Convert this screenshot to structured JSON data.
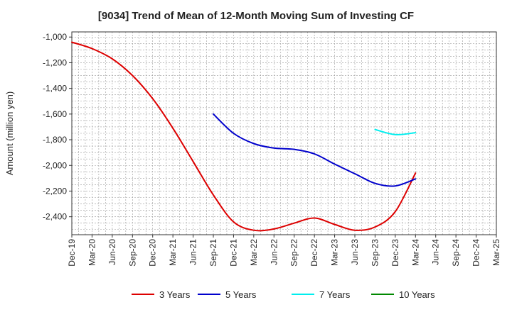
{
  "chart_data": {
    "type": "line",
    "title": "[9034]  Trend of Mean of 12-Month Moving Sum of Investing CF",
    "xlabel": "",
    "ylabel": "Amount (million yen)",
    "ylim": [
      -2540,
      -960
    ],
    "yticks": [
      -1000,
      -1200,
      -1400,
      -1600,
      -1800,
      -2000,
      -2200,
      -2400
    ],
    "ytick_labels": [
      "-1,000",
      "-1,200",
      "-1,400",
      "-1,600",
      "-1,800",
      "-2,000",
      "-2,200",
      "-2,400"
    ],
    "x_start": "Dec-19",
    "x_categories": [
      "Dec-19",
      "Mar-20",
      "Jun-20",
      "Sep-20",
      "Dec-20",
      "Mar-21",
      "Jun-21",
      "Sep-21",
      "Dec-21",
      "Mar-22",
      "Jun-22",
      "Sep-22",
      "Dec-22",
      "Mar-23",
      "Jun-23",
      "Sep-23",
      "Dec-23",
      "Mar-24",
      "Jun-24",
      "Sep-24",
      "Dec-24",
      "Mar-25"
    ],
    "grid": true,
    "legend_position": "bottom",
    "series": [
      {
        "name": "3 Years",
        "color": "#dd0000",
        "points": [
          [
            "Dec-19",
            -1040
          ],
          [
            "Mar-20",
            -1090
          ],
          [
            "Jun-20",
            -1170
          ],
          [
            "Sep-20",
            -1300
          ],
          [
            "Dec-20",
            -1480
          ],
          [
            "Mar-21",
            -1710
          ],
          [
            "Jun-21",
            -1970
          ],
          [
            "Sep-21",
            -2230
          ],
          [
            "Dec-21",
            -2440
          ],
          [
            "Mar-22",
            -2505
          ],
          [
            "Jun-22",
            -2495
          ],
          [
            "Sep-22",
            -2450
          ],
          [
            "Dec-22",
            -2410
          ],
          [
            "Mar-23",
            -2460
          ],
          [
            "Jun-23",
            -2505
          ],
          [
            "Sep-23",
            -2480
          ],
          [
            "Dec-23",
            -2360
          ],
          [
            "Mar-24",
            -2060
          ]
        ]
      },
      {
        "name": "5 Years",
        "color": "#0000cc",
        "points": [
          [
            "Sep-21",
            -1600
          ],
          [
            "Dec-21",
            -1750
          ],
          [
            "Mar-22",
            -1830
          ],
          [
            "Jun-22",
            -1865
          ],
          [
            "Sep-22",
            -1875
          ],
          [
            "Dec-22",
            -1910
          ],
          [
            "Mar-23",
            -1990
          ],
          [
            "Jun-23",
            -2065
          ],
          [
            "Sep-23",
            -2140
          ],
          [
            "Dec-23",
            -2160
          ],
          [
            "Mar-24",
            -2105
          ]
        ]
      },
      {
        "name": "7 Years",
        "color": "#00eeee",
        "points": [
          [
            "Sep-23",
            -1720
          ],
          [
            "Dec-23",
            -1760
          ],
          [
            "Mar-24",
            -1745
          ]
        ]
      },
      {
        "name": "10 Years",
        "color": "#008800",
        "points": []
      }
    ]
  }
}
